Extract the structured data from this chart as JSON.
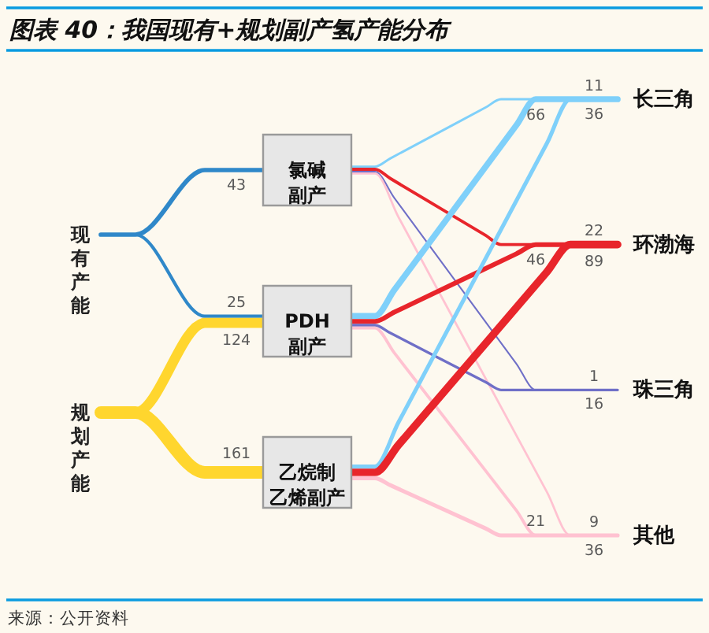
{
  "chart_data": {
    "type": "other",
    "title": "图表 40：我国现有+规划副产氢产能分布",
    "categories": [
      "现有产能",
      "规划产能",
      "氯碱副产",
      "PDH副产",
      "乙烷制乙烯副产",
      "长三角",
      "环渤海",
      "珠三角",
      "其他"
    ],
    "series": [
      {
        "colors": [
          null,
          null,
          "#2f88c9",
          "#2f88c9",
          null,
          null,
          null,
          null,
          null
        ],
        "values": [
          null,
          null,
          43,
          25,
          null,
          null,
          null,
          null,
          null
        ]
      },
      {
        "colors": [
          null,
          null,
          null,
          "#ffd62e",
          "#ffd62e",
          null,
          null,
          null,
          null
        ],
        "values": [
          null,
          null,
          null,
          124,
          161,
          null,
          null,
          null,
          null
        ]
      },
      {
        "colors": [
          null,
          null,
          null,
          null,
          null,
          "#7fd0fa",
          "#e8252b",
          "#6f6fc7",
          "#ffc2d1"
        ],
        "values": [
          null,
          null,
          null,
          null,
          null,
          11,
          22,
          1,
          9
        ]
      },
      {
        "colors": [
          null,
          null,
          null,
          null,
          null,
          "#7fd0fa",
          "#e8252b",
          "#6f6fc7",
          "#ffc2d1"
        ],
        "values": [
          null,
          null,
          null,
          null,
          null,
          66,
          46,
          16,
          21
        ]
      },
      {
        "colors": [
          null,
          null,
          null,
          null,
          null,
          "#7fd0fa",
          "#e8252b",
          null,
          "#ffc2d1"
        ],
        "values": [
          null,
          null,
          null,
          null,
          null,
          36,
          89,
          null,
          36
        ]
      }
    ],
    "data_labels": true,
    "annotations": [
      "来源：公开资料"
    ]
  }
}
